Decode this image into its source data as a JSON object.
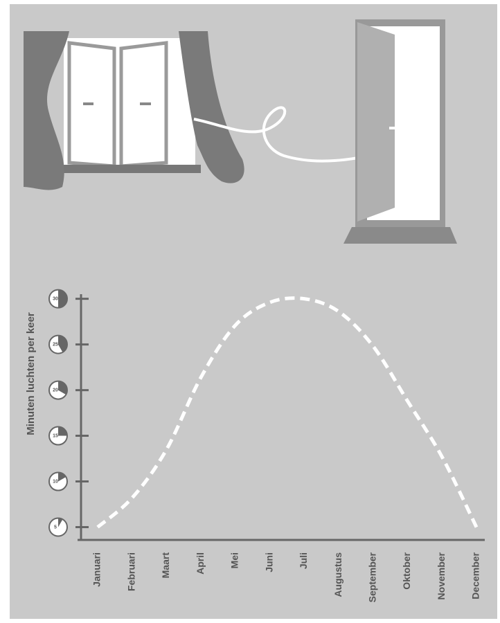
{
  "chart_data": {
    "type": "line",
    "y_label": "Minuten luchten per keer",
    "categories": [
      "Januari",
      "Februari",
      "Maart",
      "April",
      "Mei",
      "Juni",
      "Juli",
      "Augustus",
      "September",
      "Oktober",
      "November",
      "December"
    ],
    "values": [
      5,
      8.2,
      13.5,
      21.4,
      27.1,
      29.6,
      30,
      28.6,
      24.8,
      18.8,
      12.7,
      5
    ],
    "color": "#ffffff",
    "ylim": [
      3.6,
      30.5
    ],
    "yticks": [
      5,
      10,
      15,
      20,
      25,
      30
    ]
  }
}
